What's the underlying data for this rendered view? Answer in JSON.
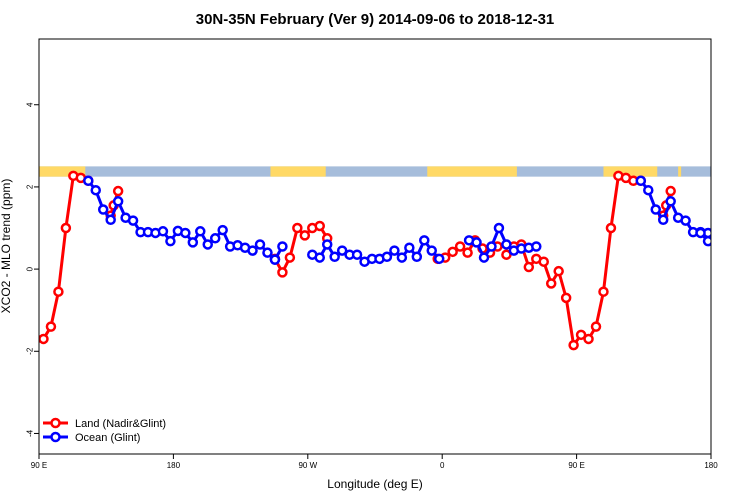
{
  "chart_data": {
    "type": "line",
    "title": "30N-35N February (Ver 9)   2014-09-06 to 2018-12-31",
    "xlabel": "Longitude (deg E)",
    "ylabel": "XCO2 - MLO trend (ppm)",
    "xlim": [
      90,
      540
    ],
    "ylim": [
      -4.5,
      5.6
    ],
    "x_ticks": [
      {
        "value": 90,
        "label": "90 E"
      },
      {
        "value": 180,
        "label": "180"
      },
      {
        "value": 270,
        "label": "90 W"
      },
      {
        "value": 360,
        "label": "0"
      },
      {
        "value": 450,
        "label": "90 E"
      },
      {
        "value": 540,
        "label": "180"
      }
    ],
    "y_ticks": [
      {
        "value": -4,
        "label": "-4"
      },
      {
        "value": -2,
        "label": "-2"
      },
      {
        "value": 0,
        "label": "0"
      },
      {
        "value": 2,
        "label": "2"
      },
      {
        "value": 4,
        "label": "4"
      }
    ],
    "legend_position": "bottom-left",
    "land_ocean_band": {
      "y_range": [
        2.25,
        2.5
      ],
      "ocean_color": "#a6bddb",
      "land_color": "#ffd966",
      "land_segments": [
        [
          90,
          121
        ],
        [
          245,
          282
        ],
        [
          350,
          410
        ],
        [
          468,
          504
        ],
        [
          518,
          520
        ]
      ]
    },
    "series": [
      {
        "name": "Land (Nadir&Glint)",
        "color": "#ff0000",
        "segments": [
          {
            "x": [
              93,
              98,
              103,
              108,
              113,
              118,
              123
            ],
            "y": [
              -1.7,
              -1.4,
              -0.55,
              1.0,
              2.27,
              2.22,
              2.15
            ]
          },
          {
            "x": [
              138,
              140,
              143
            ],
            "y": [
              1.3,
              1.55,
              1.9
            ]
          },
          {
            "x": [
              248,
              253,
              258,
              263,
              268,
              273,
              278,
              283
            ],
            "y": [
              0.25,
              -0.08,
              0.28,
              1.0,
              0.82,
              1.0,
              1.05,
              0.75
            ]
          },
          {
            "x": [
              357,
              362,
              367,
              372,
              377,
              382,
              387,
              392,
              397
            ],
            "y": [
              0.25,
              0.28,
              0.42,
              0.55,
              0.4,
              0.7,
              0.5,
              0.4,
              0.55
            ]
          },
          {
            "x": [
              403,
              408,
              413,
              418,
              423,
              428,
              433,
              438,
              443,
              448,
              453,
              458,
              463,
              468,
              473,
              478,
              483,
              488,
              493
            ],
            "y": [
              0.35,
              0.55,
              0.6,
              0.05,
              0.25,
              0.18,
              -0.35,
              -0.05,
              -0.7,
              -1.85,
              -1.6,
              -1.7,
              -1.4,
              -0.55,
              1.0,
              2.27,
              2.22,
              2.15,
              2.15
            ]
          },
          {
            "x": [
              508,
              510,
              513
            ],
            "y": [
              1.3,
              1.55,
              1.9
            ]
          }
        ]
      },
      {
        "name": "Ocean (Glint)",
        "color": "#0000ff",
        "segments": [
          {
            "x": [
              123,
              128,
              133,
              138,
              143,
              148,
              153,
              158,
              163,
              168,
              173,
              178,
              183,
              188,
              193,
              198,
              203,
              208,
              213,
              218,
              223,
              228,
              233,
              238,
              243,
              248
            ],
            "y": [
              2.15,
              1.92,
              1.45,
              1.2,
              1.65,
              1.25,
              1.18,
              0.9,
              0.9,
              0.88,
              0.92,
              0.68,
              0.93,
              0.88,
              0.65,
              0.92,
              0.6,
              0.75,
              0.95,
              0.55,
              0.58,
              0.52,
              0.45,
              0.6,
              0.4,
              0.23
            ]
          },
          {
            "x": [
              248,
              253
            ],
            "y": [
              0.23,
              0.55
            ]
          },
          {
            "x": [
              273,
              278,
              283,
              288,
              293,
              298,
              303,
              308,
              313,
              318,
              323,
              328,
              333,
              338,
              343,
              348,
              353,
              358
            ],
            "y": [
              0.35,
              0.28,
              0.6,
              0.3,
              0.45,
              0.35,
              0.35,
              0.18,
              0.25,
              0.25,
              0.3,
              0.45,
              0.28,
              0.52,
              0.3,
              0.7,
              0.45,
              0.25
            ]
          },
          {
            "x": [
              378,
              383,
              388,
              393,
              398,
              403,
              408,
              413,
              418,
              423
            ],
            "y": [
              0.7,
              0.65,
              0.28,
              0.55,
              1.0,
              0.6,
              0.45,
              0.5,
              0.52,
              0.55
            ]
          },
          {
            "x": [
              493,
              498,
              503,
              508,
              513,
              518,
              523,
              528,
              533,
              538,
              543
            ],
            "y": [
              2.15,
              1.92,
              1.45,
              1.2,
              1.65,
              1.25,
              1.18,
              0.9,
              0.9,
              0.88,
              0.92
            ]
          },
          {
            "x": [
              533,
              538,
              543
            ],
            "y": [
              0.88,
              0.68,
              0.95
            ]
          }
        ]
      }
    ]
  }
}
